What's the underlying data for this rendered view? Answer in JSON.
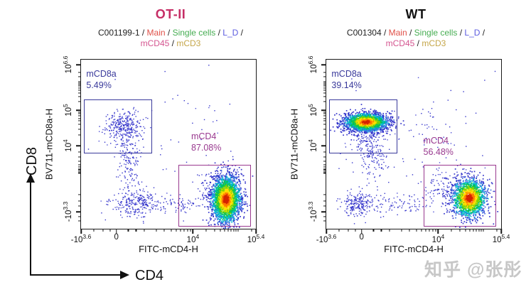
{
  "watermark": "知乎 @张彤",
  "axis_arrows": {
    "y_label": "CD8",
    "x_label": "CD4"
  },
  "colors": {
    "frame": "#1a1a1a",
    "dot_blue": "#2b2bc8",
    "dot_blue_alt": "#4646d4",
    "gate_cd8_blue": "#39399b",
    "gate_cd4_purple": "#99398f",
    "jet_palette": [
      "#d42300",
      "#ff7a00",
      "#ffdf00",
      "#7fd400",
      "#00c25d",
      "#00b9d4",
      "#3a6ae0",
      "#2b2bc8"
    ]
  },
  "chart_data": [
    {
      "type": "scatter",
      "title": "OT-II",
      "title_color": "#c62e66",
      "breadcrumb": {
        "line1": [
          {
            "text": "C001199-1",
            "color": "#222222"
          },
          {
            "text": "Main",
            "color": "#e05048"
          },
          {
            "text": "Single cells",
            "color": "#46ad52"
          },
          {
            "text": "L_D",
            "color": "#5c5ce0"
          }
        ],
        "line1_trailing_sep": true,
        "line2": [
          {
            "text": "mCD45",
            "color": "#d45590"
          },
          {
            "text": "mCD3",
            "color": "#c5a649"
          }
        ]
      },
      "xlabel": "FITC-mCD4-H",
      "ylabel": "BV711-mCD8a-H",
      "x_axis": {
        "scale": "biexponential",
        "range": [
          "-10^3.6",
          "10^5.4"
        ],
        "major": [
          {
            "base": "-10",
            "sup": "3.6",
            "frac": 0
          },
          {
            "base": "0",
            "frac": 0.202
          },
          {
            "base": "10",
            "sup": "4",
            "frac": 0.64
          },
          {
            "base": "10",
            "sup": "5.4",
            "frac": 1
          }
        ],
        "minor": [
          0.073,
          0.125,
          0.165,
          0.27,
          0.315,
          0.36,
          0.43,
          0.477,
          0.515,
          0.545,
          0.57,
          0.59,
          0.608,
          0.625,
          0.717,
          0.763,
          0.795,
          0.82,
          0.84,
          0.857,
          0.872,
          0.885,
          0.897,
          0.974
        ]
      },
      "y_axis": {
        "scale": "biexponential",
        "range": [
          "-10^3.6",
          "10^6.6"
        ],
        "major": [
          {
            "base": "10",
            "sup": "6.6",
            "frac": 0.03
          },
          {
            "base": "10",
            "sup": "5",
            "frac": 0.3
          },
          {
            "base": "10",
            "sup": "4",
            "frac": 0.51
          },
          {
            "base": "-10",
            "sup": "3.3",
            "frac": 0.9
          }
        ],
        "minor": [
          0.075,
          0.1,
          0.131,
          0.139,
          0.147,
          0.157,
          0.169,
          0.182,
          0.198,
          0.219,
          0.249,
          0.31,
          0.32,
          0.333,
          0.347,
          0.363,
          0.384,
          0.41,
          0.447,
          0.545,
          0.576,
          0.6,
          0.62,
          0.636,
          0.649,
          0.66,
          0.67,
          0.8,
          0.835,
          0.866,
          0.93,
          0.955
        ]
      },
      "gates": [
        {
          "name": "mCD8a",
          "pct": "5.49%",
          "color": "#39399b",
          "x0": 0.015,
          "y0": 0.235,
          "x1": 0.4,
          "y1": 0.545,
          "label_x": 0.03,
          "label_y": 0.05
        },
        {
          "name": "mCD4",
          "pct": "87.08%",
          "color": "#99398f",
          "x0": 0.555,
          "y0": 0.62,
          "x1": 0.965,
          "y1": 0.98,
          "label_x": 0.63,
          "label_y": 0.42
        }
      ],
      "populations_note": "cluster centers/spreads in plot-fraction coords (0,0=top-left)",
      "clusters": [
        {
          "palette": "blue",
          "cx": 0.5,
          "cy": 0.55,
          "sx": 0.28,
          "sy": 0.22,
          "n": 60
        },
        {
          "palette": "blue",
          "cx": 0.239,
          "cy": 0.393,
          "sx": 0.052,
          "sy": 0.05,
          "n": 330
        },
        {
          "palette": "blue",
          "cx": 0.27,
          "cy": 0.6,
          "sx": 0.035,
          "sy": 0.075,
          "n": 130
        },
        {
          "palette": "blue",
          "cx": 0.31,
          "cy": 0.845,
          "sx": 0.065,
          "sy": 0.042,
          "n": 260
        },
        {
          "palette": "blue",
          "cx": 0.52,
          "cy": 0.845,
          "sx": 0.1,
          "sy": 0.025,
          "n": 85
        },
        {
          "palette": "blue",
          "cx": 0.8,
          "cy": 0.73,
          "sx": 0.06,
          "sy": 0.06,
          "n": 150
        },
        {
          "palette": "jet",
          "cx": 0.826,
          "cy": 0.824,
          "sx": 0.042,
          "sy": 0.07,
          "n": 2400
        }
      ]
    },
    {
      "type": "scatter",
      "title": "WT",
      "title_color": "#111111",
      "breadcrumb": {
        "line1": [
          {
            "text": "C001304",
            "color": "#222222"
          },
          {
            "text": "Main",
            "color": "#e05048"
          },
          {
            "text": "Single cells",
            "color": "#46ad52"
          },
          {
            "text": "L_D",
            "color": "#5c5ce0"
          }
        ],
        "line1_trailing_sep": true,
        "line2": [
          {
            "text": "mCD45",
            "color": "#d45590"
          },
          {
            "text": "mCD3",
            "color": "#c5a649"
          }
        ]
      },
      "xlabel": "FITC-mCD4-H",
      "ylabel": "BV711-mCD8a-H",
      "x_axis": {
        "scale": "biexponential",
        "range": [
          "-10^3.6",
          "10^5.4"
        ],
        "major": [
          {
            "base": "-10",
            "sup": "3.6",
            "frac": 0
          },
          {
            "base": "0",
            "frac": 0.202
          },
          {
            "base": "10",
            "sup": "4",
            "frac": 0.64
          },
          {
            "base": "10",
            "sup": "5.4",
            "frac": 1
          }
        ],
        "minor": [
          0.073,
          0.125,
          0.165,
          0.27,
          0.315,
          0.36,
          0.43,
          0.477,
          0.515,
          0.545,
          0.57,
          0.59,
          0.608,
          0.625,
          0.717,
          0.763,
          0.795,
          0.82,
          0.84,
          0.857,
          0.872,
          0.885,
          0.897,
          0.974
        ]
      },
      "y_axis": {
        "scale": "biexponential",
        "range": [
          "-10^3.6",
          "10^6.6"
        ],
        "major": [
          {
            "base": "10",
            "sup": "6.6",
            "frac": 0.03
          },
          {
            "base": "10",
            "sup": "5",
            "frac": 0.3
          },
          {
            "base": "10",
            "sup": "4",
            "frac": 0.51
          },
          {
            "base": "-10",
            "sup": "3.3",
            "frac": 0.9
          }
        ],
        "minor": [
          0.075,
          0.1,
          0.131,
          0.139,
          0.147,
          0.157,
          0.169,
          0.182,
          0.198,
          0.219,
          0.249,
          0.31,
          0.32,
          0.333,
          0.347,
          0.363,
          0.384,
          0.41,
          0.447,
          0.545,
          0.576,
          0.6,
          0.62,
          0.636,
          0.649,
          0.66,
          0.67,
          0.8,
          0.835,
          0.866,
          0.93,
          0.955
        ]
      },
      "gates": [
        {
          "name": "mCD8a",
          "pct": "39.14%",
          "color": "#39399b",
          "x0": 0.015,
          "y0": 0.235,
          "x1": 0.4,
          "y1": 0.545,
          "label_x": 0.03,
          "label_y": 0.05
        },
        {
          "name": "mCD4",
          "pct": "56.48%",
          "color": "#99398f",
          "x0": 0.555,
          "y0": 0.62,
          "x1": 0.965,
          "y1": 0.98,
          "label_x": 0.555,
          "label_y": 0.445
        }
      ],
      "populations_note": "cluster centers/spreads in plot-fraction coords (0,0=top-left)",
      "clusters": [
        {
          "palette": "blue",
          "cx": 0.5,
          "cy": 0.5,
          "sx": 0.28,
          "sy": 0.22,
          "n": 70
        },
        {
          "palette": "blue",
          "cx": 0.62,
          "cy": 0.38,
          "sx": 0.08,
          "sy": 0.07,
          "n": 30
        },
        {
          "palette": "blue",
          "cx": 0.24,
          "cy": 0.46,
          "sx": 0.05,
          "sy": 0.05,
          "n": 150
        },
        {
          "palette": "blue",
          "cx": 0.27,
          "cy": 0.6,
          "sx": 0.035,
          "sy": 0.065,
          "n": 90
        },
        {
          "palette": "blue",
          "cx": 0.185,
          "cy": 0.85,
          "sx": 0.05,
          "sy": 0.035,
          "n": 230
        },
        {
          "palette": "blue",
          "cx": 0.4,
          "cy": 0.85,
          "sx": 0.09,
          "sy": 0.028,
          "n": 80
        },
        {
          "palette": "blue",
          "cx": 0.7,
          "cy": 0.76,
          "sx": 0.09,
          "sy": 0.055,
          "n": 180
        },
        {
          "palette": "jet",
          "cx": 0.225,
          "cy": 0.366,
          "sx": 0.062,
          "sy": 0.027,
          "n": 2200
        },
        {
          "palette": "jet",
          "cx": 0.815,
          "cy": 0.815,
          "sx": 0.05,
          "sy": 0.058,
          "n": 1600
        }
      ]
    }
  ]
}
